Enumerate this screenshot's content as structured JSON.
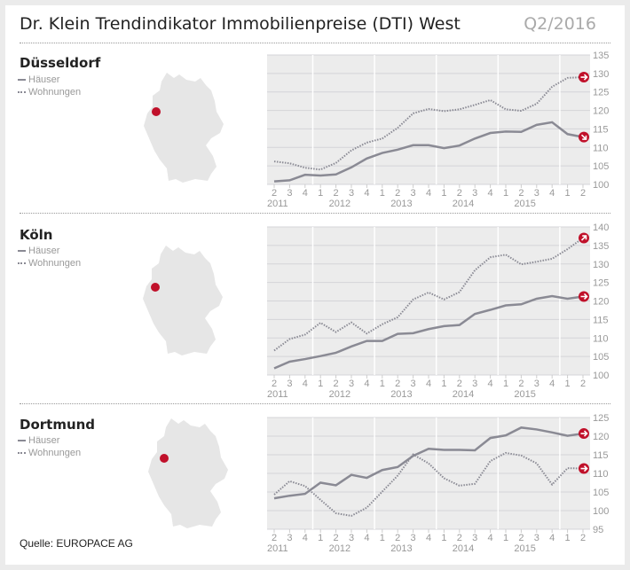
{
  "header": {
    "title": "Dr. Klein Trendindikator Immobilienpreise (DTI) West",
    "period": "Q2/2016"
  },
  "legend": {
    "houses": "Häuser",
    "apartments": "Wohnungen"
  },
  "source": "Quelle: EUROPACE AG",
  "colors": {
    "line": "#8a8a94",
    "accent": "#c0102a",
    "plot_bg": "#ececec",
    "map": "#e6e6e6"
  },
  "chart_data": [
    {
      "type": "line",
      "title": "Düsseldorf",
      "quarter_labels": [
        "2",
        "3",
        "4",
        "1",
        "2",
        "3",
        "4",
        "1",
        "2",
        "3",
        "4",
        "1",
        "2",
        "3",
        "4",
        "1",
        "2",
        "3",
        "4",
        "1",
        "2"
      ],
      "year_labels": [
        "2011",
        "2012",
        "2013",
        "2014",
        "2015"
      ],
      "yticks": [
        "100",
        "105",
        "110",
        "115",
        "120",
        "125",
        "130",
        "135"
      ],
      "ylim": [
        100,
        135
      ],
      "series": [
        {
          "name": "Häuser",
          "values": [
            100.8,
            101.1,
            102.6,
            102.4,
            102.7,
            104.6,
            107.0,
            108.5,
            109.4,
            110.6,
            110.6,
            109.8,
            110.5,
            112.4,
            113.9,
            114.3,
            114.2,
            116.1,
            116.8,
            113.6,
            112.8
          ],
          "trend": "down"
        },
        {
          "name": "Wohnungen",
          "values": [
            106.2,
            105.7,
            104.5,
            104.0,
            105.8,
            109.2,
            111.3,
            112.4,
            115.3,
            119.2,
            120.4,
            119.8,
            120.3,
            121.5,
            122.8,
            120.3,
            119.9,
            121.8,
            126.4,
            128.8,
            129.0
          ],
          "trend": "flat"
        }
      ]
    },
    {
      "type": "line",
      "title": "Köln",
      "quarter_labels": [
        "2",
        "3",
        "4",
        "1",
        "2",
        "3",
        "4",
        "1",
        "2",
        "3",
        "4",
        "1",
        "2",
        "3",
        "4",
        "1",
        "2",
        "3",
        "4",
        "1",
        "2"
      ],
      "year_labels": [
        "2011",
        "2012",
        "2013",
        "2014",
        "2015"
      ],
      "yticks": [
        "100",
        "105",
        "110",
        "115",
        "120",
        "125",
        "130",
        "135",
        "140"
      ],
      "ylim": [
        100,
        140
      ],
      "series": [
        {
          "name": "Häuser",
          "values": [
            101.8,
            103.6,
            104.3,
            105.1,
            106.0,
            107.7,
            109.2,
            109.2,
            111.1,
            111.3,
            112.4,
            113.2,
            113.5,
            116.5,
            117.6,
            118.8,
            119.1,
            120.6,
            121.3,
            120.6,
            121.2
          ],
          "trend": "flat"
        },
        {
          "name": "Wohnungen",
          "values": [
            106.6,
            109.7,
            110.9,
            114.1,
            111.6,
            114.2,
            111.2,
            113.7,
            115.6,
            120.4,
            122.3,
            120.4,
            122.4,
            128.3,
            131.8,
            132.5,
            129.9,
            130.6,
            131.4,
            134.0,
            137.0
          ],
          "trend": "up"
        }
      ]
    },
    {
      "type": "line",
      "title": "Dortmund",
      "quarter_labels": [
        "2",
        "3",
        "4",
        "1",
        "2",
        "3",
        "4",
        "1",
        "2",
        "3",
        "4",
        "1",
        "2",
        "3",
        "4",
        "1",
        "2",
        "3",
        "4",
        "1",
        "2"
      ],
      "year_labels": [
        "2011",
        "2012",
        "2013",
        "2014",
        "2015"
      ],
      "yticks": [
        "95",
        "100",
        "105",
        "110",
        "115",
        "120",
        "125"
      ],
      "ylim": [
        95,
        125
      ],
      "series": [
        {
          "name": "Häuser",
          "values": [
            103.3,
            104.0,
            104.5,
            107.5,
            106.8,
            109.6,
            108.8,
            110.9,
            111.7,
            114.7,
            116.6,
            116.3,
            116.3,
            116.2,
            119.5,
            120.2,
            122.3,
            121.8,
            121.0,
            120.1,
            120.7
          ],
          "trend": "flat"
        },
        {
          "name": "Wohnungen",
          "values": [
            104.3,
            107.9,
            106.6,
            102.9,
            99.3,
            98.6,
            100.8,
            105.1,
            109.4,
            115.1,
            112.7,
            108.7,
            106.7,
            107.2,
            113.3,
            115.5,
            114.8,
            112.7,
            107.0,
            111.4,
            111.3
          ],
          "trend": "flat"
        }
      ]
    }
  ]
}
